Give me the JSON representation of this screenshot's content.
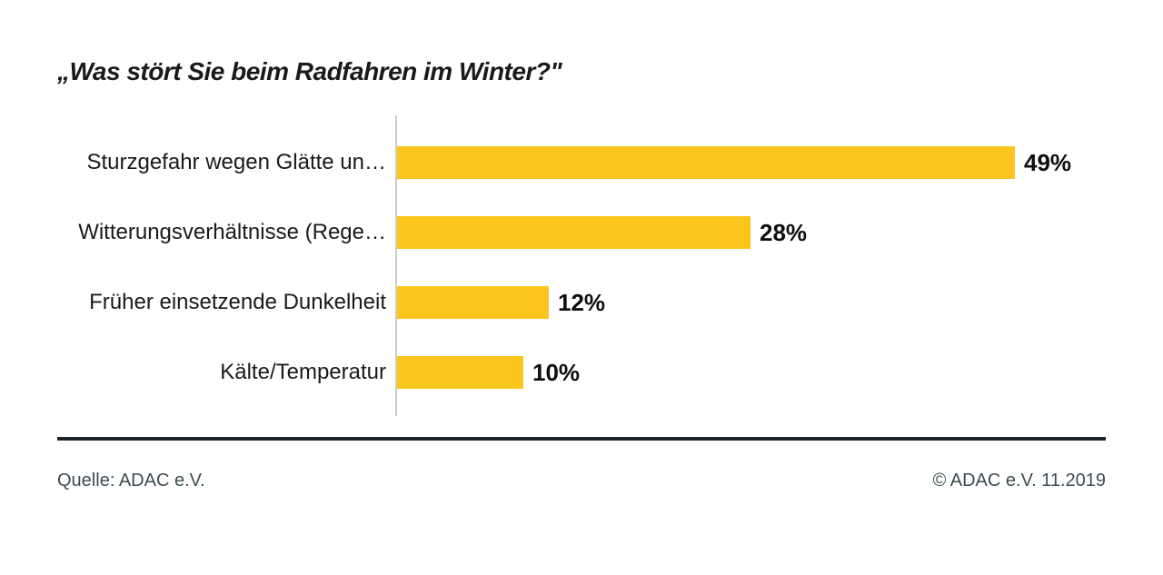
{
  "chart_data": {
    "type": "bar",
    "orientation": "horizontal",
    "title": "„Was stört Sie beim Radfahren im Winter?\"",
    "categories": [
      "Sturzgefahr wegen Glätte un…",
      "Witterungsverhältnisse (Rege…",
      "Früher einsetzende Dunkelheit",
      "Kälte/Temperatur"
    ],
    "values": [
      49,
      28,
      12,
      10
    ],
    "value_labels": [
      "49%",
      "28%",
      "12%",
      "10%"
    ],
    "unit": "%",
    "xlim": [
      0,
      49
    ],
    "grid": false,
    "legend": false,
    "bar_color": "#FCC51D"
  },
  "footer": {
    "source": "Quelle: ADAC e.V.",
    "copyright": "© ADAC e.V. 11.2019"
  },
  "colors": {
    "bar": "#FCC51D",
    "title_text": "#1A1A1A",
    "label_text": "#1A1A1A",
    "value_text": "#0D0D0D",
    "footer_text": "#3D4C52",
    "axis_line": "#CCCCCC",
    "divider": "#1C2628"
  }
}
